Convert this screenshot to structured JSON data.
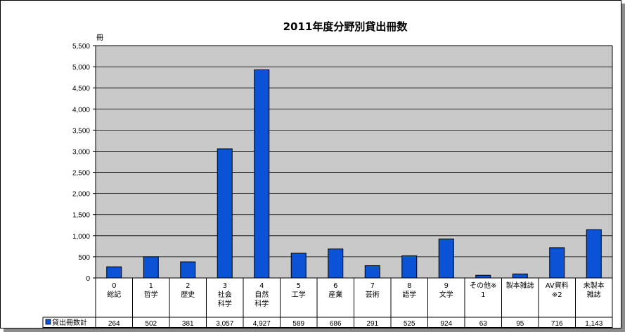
{
  "chart_data": {
    "type": "bar",
    "title": "2011年度分野別貸出冊数",
    "ylabel": "冊",
    "ylim": [
      0,
      5500
    ],
    "ytick_step": 500,
    "yticks": [
      "0",
      "500",
      "1,000",
      "1,500",
      "2,000",
      "2,500",
      "3,000",
      "3,500",
      "4,000",
      "4,500",
      "5,000",
      "5,500"
    ],
    "grid": true,
    "categories": [
      [
        "0",
        "総記"
      ],
      [
        "1",
        "哲学"
      ],
      [
        "2",
        "歴史"
      ],
      [
        "3",
        "社会",
        "科学"
      ],
      [
        "4",
        "自然",
        "科学"
      ],
      [
        "5",
        "工学"
      ],
      [
        "6",
        "産業"
      ],
      [
        "7",
        "芸術"
      ],
      [
        "8",
        "語学"
      ],
      [
        "9",
        "文学"
      ],
      [
        "その他※",
        "1"
      ],
      [
        "製本雑誌"
      ],
      [
        "AV資料",
        "※2"
      ],
      [
        "未製本",
        "雑誌"
      ]
    ],
    "series": [
      {
        "name": "貸出冊数計",
        "values": [
          264,
          502,
          381,
          3057,
          4927,
          589,
          686,
          291,
          525,
          924,
          63,
          95,
          716,
          1143
        ],
        "labels": [
          "264",
          "502",
          "381",
          "3,057",
          "4,927",
          "589",
          "686",
          "291",
          "525",
          "924",
          "63",
          "95",
          "716",
          "1,143"
        ]
      }
    ],
    "colors": {
      "bar": "#0a52d6",
      "bar_edge": "#000000",
      "plot_bg": "#c9c9c9",
      "gridline": "#000000"
    }
  }
}
